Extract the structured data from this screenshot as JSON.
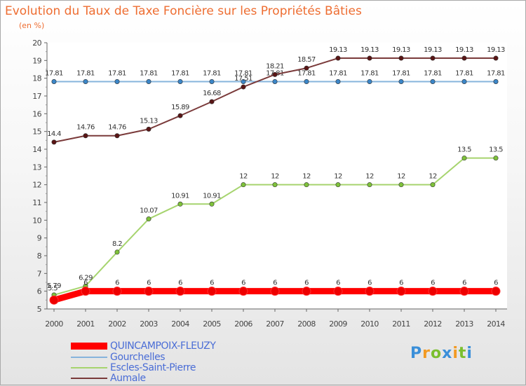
{
  "title": "Evolution du Taux de Taxe Foncière sur les Propriétés Bâties",
  "subtitle": "(en %)",
  "logo": {
    "text": "Proxiti",
    "colors": [
      "#3a8fd9",
      "#f29a23",
      "#7bbf2f"
    ]
  },
  "chart_data": {
    "type": "line",
    "title": "Evolution du Taux de Taxe Foncière sur les Propriétés Bâties",
    "ylabel": "(en %)",
    "xlabel": "",
    "ylim": [
      5,
      20
    ],
    "yticks": [
      5,
      6,
      7,
      8,
      9,
      10,
      11,
      12,
      13,
      14,
      15,
      16,
      17,
      18,
      19,
      20
    ],
    "categories": [
      "2000",
      "2001",
      "2002",
      "2003",
      "2004",
      "2005",
      "2006",
      "2007",
      "2008",
      "2009",
      "2010",
      "2011",
      "2012",
      "2013",
      "2014"
    ],
    "grid": false,
    "legend_position": "bottom-left",
    "series": [
      {
        "name": "Gourchelles",
        "color": "#86b4dc",
        "marker": "#3b86c8",
        "values": [
          17.81,
          17.81,
          17.81,
          17.81,
          17.81,
          17.81,
          17.81,
          17.81,
          17.81,
          17.81,
          17.81,
          17.81,
          17.81,
          17.81,
          17.81
        ],
        "labels": [
          "17.81",
          "17.81",
          "17.81",
          "17.81",
          "17.81",
          "17.81",
          "17.81",
          "17.81",
          "17.81",
          "17.81",
          "17.81",
          "17.81",
          "17.81",
          "17.81",
          "17.81"
        ]
      },
      {
        "name": "Aumale",
        "color": "#7a3a3a",
        "marker": "#5a1515",
        "values": [
          14.4,
          14.76,
          14.76,
          15.13,
          15.89,
          16.68,
          17.51,
          18.21,
          18.57,
          19.13,
          19.13,
          19.13,
          19.13,
          19.13,
          19.13
        ],
        "labels": [
          "14.4",
          "14.76",
          "14.76",
          "15.13",
          "15.89",
          "16.68",
          "17.51",
          "18.21",
          "18.57",
          "19.13",
          "19.13",
          "19.13",
          "19.13",
          "19.13",
          "19.13"
        ]
      },
      {
        "name": "Escles-Saint-Pierre",
        "color": "#a6d46e",
        "marker": "#7ec23a",
        "values": [
          5.79,
          6.29,
          8.2,
          10.07,
          10.91,
          10.91,
          12,
          12,
          12,
          12,
          12,
          12,
          12,
          13.5,
          13.5
        ],
        "labels": [
          "5.79",
          "6.29",
          "8.2",
          "10.07",
          "10.91",
          "10.91",
          "12",
          "12",
          "12",
          "12",
          "12",
          "12",
          "12",
          "13.5",
          "13.5"
        ]
      },
      {
        "name": "QUINCAMPOIX-FLEUZY",
        "color": "#ff0000",
        "marker": "#ee0000",
        "values": [
          5.5,
          6,
          6,
          6,
          6,
          6,
          6,
          6,
          6,
          6,
          6,
          6,
          6,
          6,
          6
        ],
        "labels": [
          "5.5",
          "6",
          "6",
          "6",
          "6",
          "6",
          "6",
          "6",
          "6",
          "6",
          "6",
          "6",
          "6",
          "6",
          "6"
        ]
      }
    ],
    "legend": [
      "QUINCAMPOIX-FLEUZY",
      "Gourchelles",
      "Escles-Saint-Pierre",
      "Aumale"
    ]
  }
}
